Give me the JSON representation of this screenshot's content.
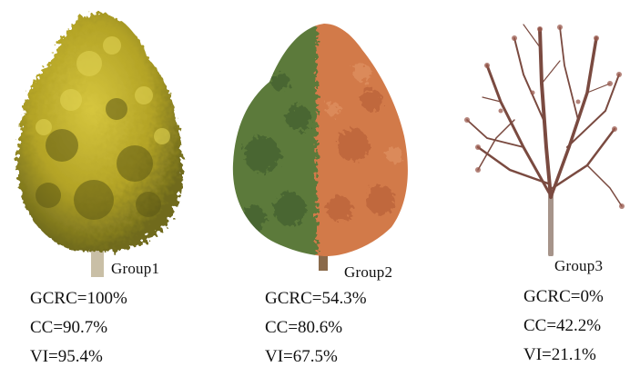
{
  "groups": [
    {
      "label": "Group1",
      "gcrc": "GCRC=100%",
      "cc": "CC=90.7%",
      "vi": "VI=95.4%",
      "colors": {
        "foliage_light": "#c8b632",
        "foliage_mid": "#a99a1f",
        "foliage_dark": "#6f6a1c",
        "trunk": "#c9bfa6"
      }
    },
    {
      "label": "Group2",
      "gcrc": "GCRC=54.3%",
      "cc": "CC=80.6%",
      "vi": "VI=67.5%",
      "colors": {
        "foliage_green": "#5b7a3a",
        "foliage_green_dark": "#3f5a2a",
        "foliage_orange": "#d27a4a",
        "foliage_orange_dark": "#b25a32",
        "trunk": "#8a6a4a"
      }
    },
    {
      "label": "Group3",
      "gcrc": "GCRC=0%",
      "cc": "CC=42.2%",
      "vi": "VI=21.1%",
      "colors": {
        "branch": "#7a4a40",
        "leaf": "#9a5a4e",
        "trunk": "#a6948a"
      }
    }
  ]
}
